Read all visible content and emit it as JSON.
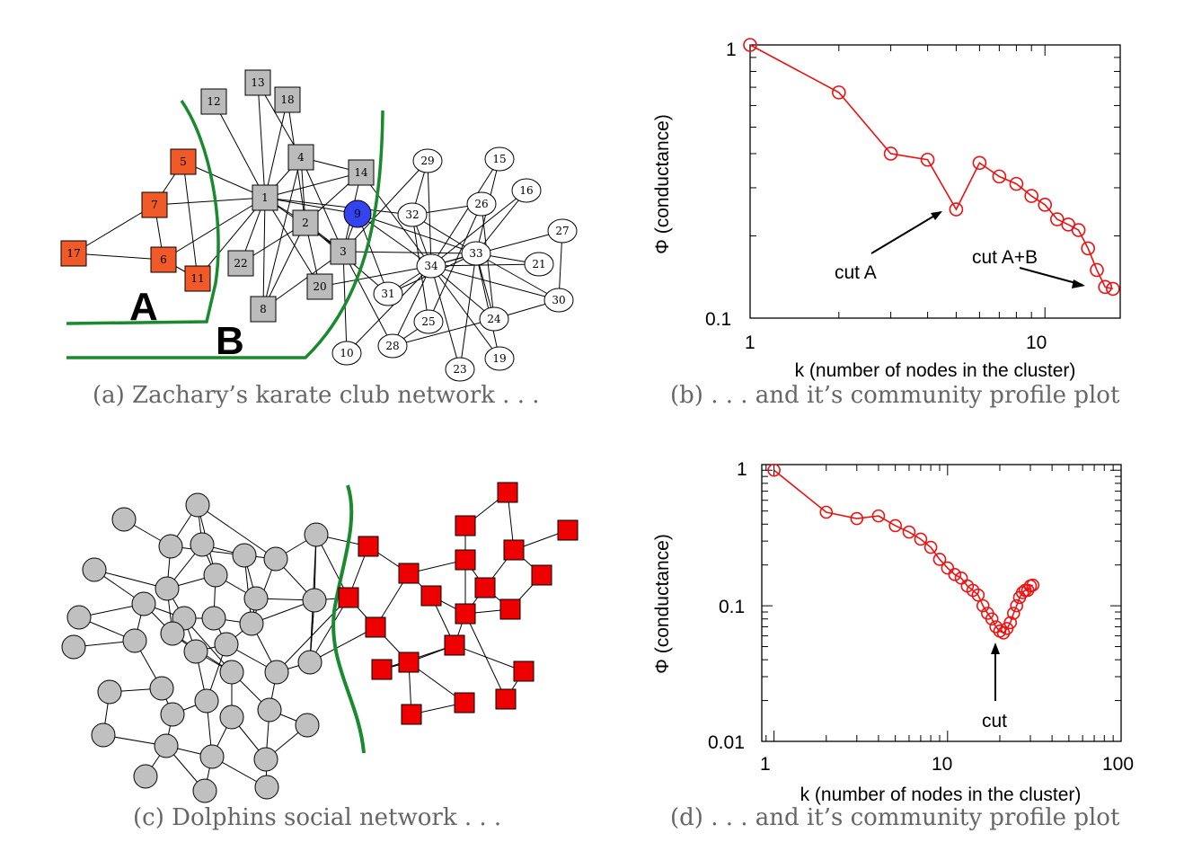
{
  "captions": {
    "a": "(a) Zachary’s karate club network . . .",
    "b": "(b) . . . and it’s community profile plot",
    "c": "(c) Dolphins social network . . .",
    "d": "(d) . . . and it’s community profile plot"
  },
  "karate": {
    "group_labels": [
      "A",
      "B"
    ],
    "colors": {
      "group_a": "#f05a28",
      "group_b": "#bbbbbb",
      "node9": "#3344ee",
      "other": "#ffffff",
      "divider": "#1a8a2e"
    },
    "nodes": [
      {
        "id": "1",
        "shape": "square",
        "group": "b"
      },
      {
        "id": "2",
        "shape": "square",
        "group": "b"
      },
      {
        "id": "3",
        "shape": "square",
        "group": "b"
      },
      {
        "id": "4",
        "shape": "square",
        "group": "b"
      },
      {
        "id": "5",
        "shape": "square",
        "group": "a"
      },
      {
        "id": "6",
        "shape": "square",
        "group": "a"
      },
      {
        "id": "7",
        "shape": "square",
        "group": "a"
      },
      {
        "id": "8",
        "shape": "square",
        "group": "b"
      },
      {
        "id": "9",
        "shape": "circle",
        "group": "node9"
      },
      {
        "id": "10",
        "shape": "circle",
        "group": "other"
      },
      {
        "id": "11",
        "shape": "square",
        "group": "a"
      },
      {
        "id": "12",
        "shape": "square",
        "group": "b"
      },
      {
        "id": "13",
        "shape": "square",
        "group": "b"
      },
      {
        "id": "14",
        "shape": "square",
        "group": "b"
      },
      {
        "id": "15",
        "shape": "circle",
        "group": "other"
      },
      {
        "id": "16",
        "shape": "circle",
        "group": "other"
      },
      {
        "id": "17",
        "shape": "square",
        "group": "a"
      },
      {
        "id": "18",
        "shape": "square",
        "group": "b"
      },
      {
        "id": "19",
        "shape": "circle",
        "group": "other"
      },
      {
        "id": "20",
        "shape": "square",
        "group": "b"
      },
      {
        "id": "21",
        "shape": "circle",
        "group": "other"
      },
      {
        "id": "22",
        "shape": "square",
        "group": "b"
      },
      {
        "id": "23",
        "shape": "circle",
        "group": "other"
      },
      {
        "id": "24",
        "shape": "circle",
        "group": "other"
      },
      {
        "id": "25",
        "shape": "circle",
        "group": "other"
      },
      {
        "id": "26",
        "shape": "circle",
        "group": "other"
      },
      {
        "id": "27",
        "shape": "circle",
        "group": "other"
      },
      {
        "id": "28",
        "shape": "circle",
        "group": "other"
      },
      {
        "id": "29",
        "shape": "circle",
        "group": "other"
      },
      {
        "id": "30",
        "shape": "circle",
        "group": "other"
      },
      {
        "id": "31",
        "shape": "circle",
        "group": "other"
      },
      {
        "id": "32",
        "shape": "circle",
        "group": "other"
      },
      {
        "id": "33",
        "shape": "circle",
        "group": "other"
      },
      {
        "id": "34",
        "shape": "circle",
        "group": "other"
      }
    ],
    "edges": [
      [
        "1",
        "2"
      ],
      [
        "1",
        "3"
      ],
      [
        "1",
        "4"
      ],
      [
        "1",
        "5"
      ],
      [
        "1",
        "6"
      ],
      [
        "1",
        "7"
      ],
      [
        "1",
        "8"
      ],
      [
        "1",
        "9"
      ],
      [
        "1",
        "11"
      ],
      [
        "1",
        "12"
      ],
      [
        "1",
        "13"
      ],
      [
        "1",
        "14"
      ],
      [
        "1",
        "18"
      ],
      [
        "1",
        "20"
      ],
      [
        "1",
        "22"
      ],
      [
        "1",
        "32"
      ],
      [
        "2",
        "3"
      ],
      [
        "2",
        "4"
      ],
      [
        "2",
        "8"
      ],
      [
        "2",
        "14"
      ],
      [
        "2",
        "18"
      ],
      [
        "2",
        "20"
      ],
      [
        "2",
        "22"
      ],
      [
        "2",
        "31"
      ],
      [
        "3",
        "4"
      ],
      [
        "3",
        "8"
      ],
      [
        "3",
        "9"
      ],
      [
        "3",
        "10"
      ],
      [
        "3",
        "14"
      ],
      [
        "3",
        "28"
      ],
      [
        "3",
        "29"
      ],
      [
        "3",
        "33"
      ],
      [
        "4",
        "8"
      ],
      [
        "4",
        "13"
      ],
      [
        "4",
        "14"
      ],
      [
        "5",
        "7"
      ],
      [
        "5",
        "11"
      ],
      [
        "6",
        "7"
      ],
      [
        "6",
        "11"
      ],
      [
        "6",
        "17"
      ],
      [
        "7",
        "17"
      ],
      [
        "9",
        "31"
      ],
      [
        "9",
        "33"
      ],
      [
        "9",
        "34"
      ],
      [
        "10",
        "34"
      ],
      [
        "14",
        "34"
      ],
      [
        "15",
        "33"
      ],
      [
        "15",
        "34"
      ],
      [
        "16",
        "33"
      ],
      [
        "16",
        "34"
      ],
      [
        "19",
        "33"
      ],
      [
        "19",
        "34"
      ],
      [
        "20",
        "34"
      ],
      [
        "21",
        "33"
      ],
      [
        "21",
        "34"
      ],
      [
        "23",
        "33"
      ],
      [
        "23",
        "34"
      ],
      [
        "24",
        "26"
      ],
      [
        "24",
        "28"
      ],
      [
        "24",
        "30"
      ],
      [
        "24",
        "33"
      ],
      [
        "24",
        "34"
      ],
      [
        "25",
        "26"
      ],
      [
        "25",
        "28"
      ],
      [
        "25",
        "32"
      ],
      [
        "26",
        "32"
      ],
      [
        "27",
        "30"
      ],
      [
        "27",
        "34"
      ],
      [
        "28",
        "34"
      ],
      [
        "29",
        "32"
      ],
      [
        "29",
        "34"
      ],
      [
        "30",
        "33"
      ],
      [
        "30",
        "34"
      ],
      [
        "31",
        "33"
      ],
      [
        "31",
        "34"
      ],
      [
        "32",
        "33"
      ],
      [
        "32",
        "34"
      ],
      [
        "33",
        "34"
      ]
    ]
  },
  "dolphins": {
    "colors": {
      "left": "#c0c0c0",
      "right": "#ee0000",
      "divider": "#1a8a2e"
    }
  },
  "chart_data": [
    {
      "type": "line",
      "panel": "b",
      "xscale": "log",
      "yscale": "log",
      "xlim": [
        1,
        18
      ],
      "ylim": [
        0.1,
        1
      ],
      "xlabel": "k (number of nodes in the cluster)",
      "ylabel": "Φ (conductance)",
      "xticks": [
        "1",
        "10"
      ],
      "yticks": [
        "1",
        "0.1"
      ],
      "color": "#ee1111",
      "x": [
        1,
        2,
        3,
        4,
        5,
        6,
        7,
        8,
        9,
        10,
        11,
        12,
        13,
        14,
        15,
        16,
        17
      ],
      "y": [
        1.0,
        0.67,
        0.4,
        0.38,
        0.25,
        0.37,
        0.33,
        0.31,
        0.28,
        0.26,
        0.23,
        0.22,
        0.21,
        0.18,
        0.15,
        0.13,
        0.128
      ],
      "annotations": [
        "cut A",
        "cut A+B"
      ]
    },
    {
      "type": "line",
      "panel": "d",
      "xscale": "log",
      "yscale": "log",
      "xlim": [
        0.85,
        100
      ],
      "ylim": [
        0.01,
        1.1
      ],
      "xlabel": "k (number of nodes in the cluster)",
      "ylabel": "Φ (conductance)",
      "xticks": [
        "1",
        "10",
        "100"
      ],
      "yticks": [
        "1",
        "0.1",
        "0.01"
      ],
      "color": "#ee1111",
      "x": [
        1,
        2,
        3,
        4,
        5,
        6,
        7,
        8,
        9,
        10,
        11,
        12,
        13,
        14,
        15,
        16,
        17,
        18,
        19,
        20,
        21,
        22,
        23,
        24,
        25,
        26,
        27,
        28,
        29,
        30,
        31
      ],
      "y": [
        1.0,
        0.49,
        0.44,
        0.46,
        0.39,
        0.35,
        0.31,
        0.27,
        0.22,
        0.19,
        0.17,
        0.16,
        0.14,
        0.13,
        0.12,
        0.1,
        0.088,
        0.08,
        0.07,
        0.065,
        0.063,
        0.068,
        0.075,
        0.088,
        0.1,
        0.115,
        0.125,
        0.13,
        0.13,
        0.14,
        0.142
      ],
      "annotations": [
        "cut"
      ]
    }
  ]
}
